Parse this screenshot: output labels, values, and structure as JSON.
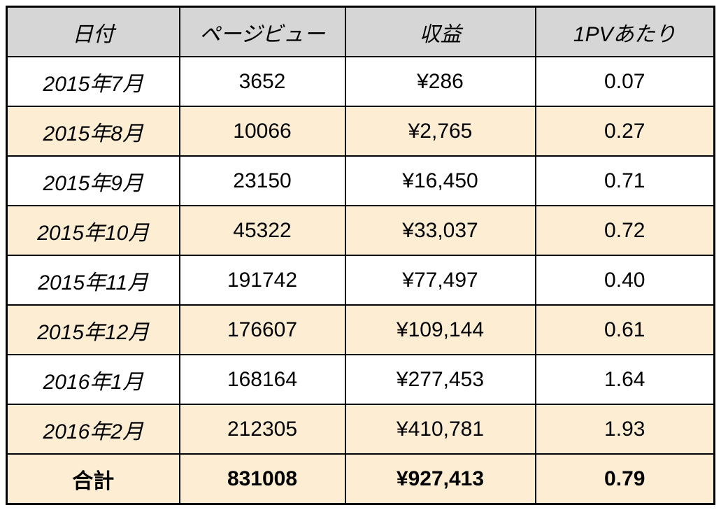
{
  "headers": [
    "日付",
    "ページビュー",
    "収益",
    "1PVあたり"
  ],
  "rows": [
    {
      "date": "2015年7月",
      "pv": "3652",
      "revenue": "¥286",
      "per_pv": "0.07"
    },
    {
      "date": "2015年8月",
      "pv": "10066",
      "revenue": "¥2,765",
      "per_pv": "0.27"
    },
    {
      "date": "2015年9月",
      "pv": "23150",
      "revenue": "¥16,450",
      "per_pv": "0.71"
    },
    {
      "date": "2015年10月",
      "pv": "45322",
      "revenue": "¥33,037",
      "per_pv": "0.72"
    },
    {
      "date": "2015年11月",
      "pv": "191742",
      "revenue": "¥77,497",
      "per_pv": "0.40"
    },
    {
      "date": "2015年12月",
      "pv": "176607",
      "revenue": "¥109,144",
      "per_pv": "0.61"
    },
    {
      "date": "2016年1月",
      "pv": "168164",
      "revenue": "¥277,453",
      "per_pv": "1.64"
    },
    {
      "date": "2016年2月",
      "pv": "212305",
      "revenue": "¥410,781",
      "per_pv": "1.93"
    }
  ],
  "total": {
    "label": "合計",
    "pv": "831008",
    "revenue": "¥927,413",
    "per_pv": "0.79"
  },
  "colors": {
    "header_bg": "#d6d6d6",
    "stripe_bg": "#fdedd2",
    "row_bg": "#ffffff",
    "border": "#000000"
  }
}
